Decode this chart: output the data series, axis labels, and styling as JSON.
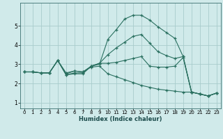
{
  "title": "",
  "xlabel": "Humidex (Indice chaleur)",
  "background_color": "#d0eaea",
  "grid_color": "#a8cccc",
  "line_color": "#2a7060",
  "xlim": [
    -0.5,
    23.5
  ],
  "ylim": [
    0.7,
    6.2
  ],
  "yticks": [
    1,
    2,
    3,
    4,
    5
  ],
  "xticks": [
    0,
    1,
    2,
    3,
    4,
    5,
    6,
    7,
    8,
    9,
    10,
    11,
    12,
    13,
    14,
    15,
    16,
    17,
    18,
    19,
    20,
    21,
    22,
    23
  ],
  "lines": [
    {
      "x": [
        0,
        1,
        2,
        3,
        4,
        5,
        6,
        7,
        8,
        9,
        10,
        11,
        12,
        13,
        14,
        15,
        16,
        17,
        18,
        19,
        20,
        21,
        22,
        23
      ],
      "y": [
        2.6,
        2.6,
        2.55,
        2.55,
        3.2,
        2.55,
        2.65,
        2.6,
        2.9,
        3.0,
        4.3,
        4.8,
        5.35,
        5.55,
        5.55,
        5.3,
        4.95,
        4.65,
        4.35,
        3.4,
        1.55,
        1.45,
        1.35,
        1.5
      ]
    },
    {
      "x": [
        0,
        1,
        2,
        3,
        4,
        5,
        6,
        7,
        8,
        9,
        10,
        11,
        12,
        13,
        14,
        15,
        16,
        17,
        18,
        19,
        20,
        21,
        22,
        23
      ],
      "y": [
        2.6,
        2.6,
        2.55,
        2.55,
        3.2,
        2.45,
        2.55,
        2.55,
        2.9,
        3.05,
        3.5,
        3.85,
        4.15,
        4.45,
        4.55,
        4.1,
        3.65,
        3.45,
        3.3,
        3.4,
        1.55,
        1.45,
        1.35,
        1.5
      ]
    },
    {
      "x": [
        0,
        1,
        2,
        3,
        4,
        5,
        6,
        7,
        8,
        9,
        10,
        11,
        12,
        13,
        14,
        15,
        16,
        17,
        18,
        19,
        20,
        21,
        22,
        23
      ],
      "y": [
        2.6,
        2.6,
        2.55,
        2.55,
        3.2,
        2.45,
        2.5,
        2.5,
        2.9,
        3.05,
        3.05,
        3.1,
        3.2,
        3.3,
        3.4,
        2.9,
        2.85,
        2.85,
        2.9,
        3.35,
        1.55,
        1.45,
        1.35,
        1.5
      ]
    },
    {
      "x": [
        0,
        1,
        2,
        3,
        4,
        5,
        6,
        7,
        8,
        9,
        10,
        11,
        12,
        13,
        14,
        15,
        16,
        17,
        18,
        19,
        20,
        21,
        22,
        23
      ],
      "y": [
        2.6,
        2.6,
        2.55,
        2.55,
        3.2,
        2.5,
        2.65,
        2.6,
        2.85,
        2.9,
        2.5,
        2.35,
        2.2,
        2.05,
        1.9,
        1.8,
        1.7,
        1.65,
        1.6,
        1.55,
        1.55,
        1.45,
        1.35,
        1.5
      ]
    }
  ]
}
